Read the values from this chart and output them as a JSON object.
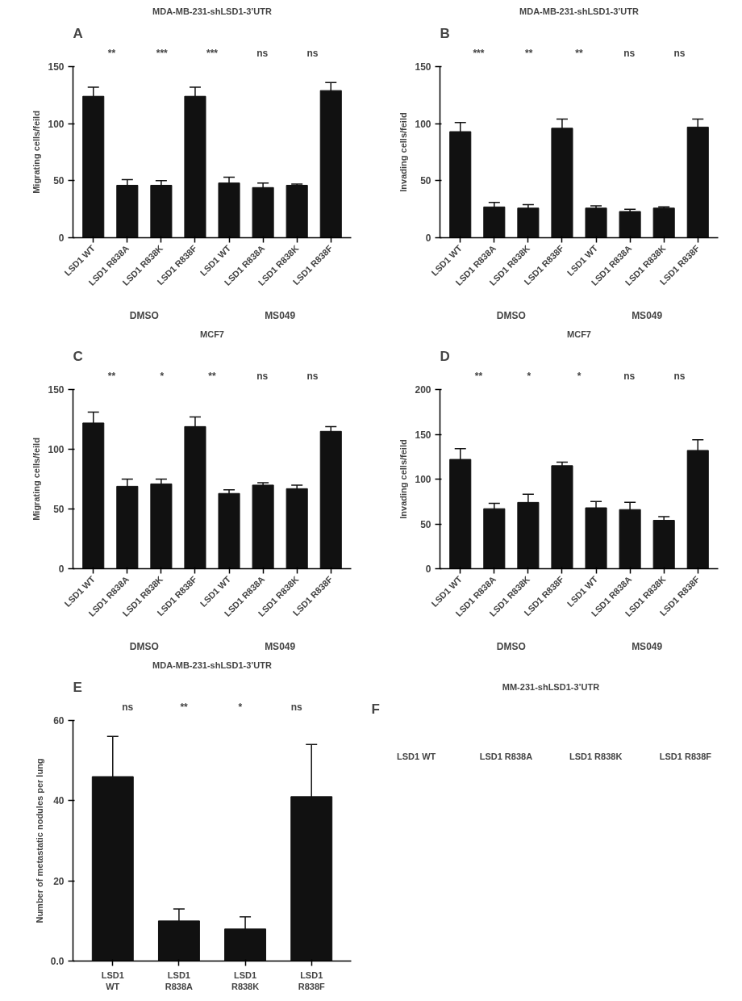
{
  "chart_data": [
    {
      "type": "bar",
      "title": "MDA-MB-231-shLSD1-3’UTR",
      "ylabel": "Migrating cells/feild",
      "categories": [
        "LSD1 WT",
        "LSD1 R838A",
        "LSD1 R838K",
        "LSD1 R838F",
        "LSD1 WT",
        "LSD1 R838A",
        "LSD1 R838K",
        "LSD1 R838F"
      ],
      "color": "#111111",
      "values": [
        124,
        46,
        46,
        124,
        48,
        44,
        46,
        129
      ],
      "errors": [
        8,
        5,
        4,
        8,
        5,
        4,
        1,
        7
      ],
      "ylim": [
        0,
        150
      ],
      "yticks": [
        0,
        50,
        100,
        150
      ],
      "grid": false,
      "annotations": [
        "A",
        "**",
        "***",
        "***",
        "ns",
        "ns",
        "DMSO",
        "MS049"
      ]
    },
    {
      "type": "bar",
      "title": "MDA-MB-231-shLSD1-3’UTR",
      "ylabel": "Invading cells/feild",
      "categories": [
        "LSD1 WT",
        "LSD1 R838A",
        "LSD1 R838K",
        "LSD1 R838F",
        "LSD1 WT",
        "LSD1 R838A",
        "LSD1 R838K",
        "LSD1 R838F"
      ],
      "color": "#111111",
      "values": [
        93,
        27,
        26,
        96,
        26,
        23,
        26,
        97
      ],
      "errors": [
        8,
        4,
        3,
        8,
        2,
        2,
        1,
        7
      ],
      "ylim": [
        0,
        150
      ],
      "yticks": [
        0,
        50,
        100,
        150
      ],
      "grid": false,
      "annotations": [
        "B",
        "***",
        "**",
        "**",
        "ns",
        "ns",
        "DMSO",
        "MS049"
      ]
    },
    {
      "type": "bar",
      "title": "MCF7",
      "ylabel": "Migrating cells/feild",
      "categories": [
        "LSD1 WT",
        "LSD1 R838A",
        "LSD1 R838K",
        "LSD1 R838F",
        "LSD1 WT",
        "LSD1 R838A",
        "LSD1 R838K",
        "LSD1 R838F"
      ],
      "color": "#111111",
      "values": [
        122,
        69,
        71,
        119,
        63,
        70,
        67,
        115
      ],
      "errors": [
        9,
        6,
        4,
        8,
        3,
        2,
        3,
        4
      ],
      "ylim": [
        0,
        150
      ],
      "yticks": [
        0,
        50,
        100,
        150
      ],
      "grid": false,
      "annotations": [
        "C",
        "**",
        "*",
        "**",
        "ns",
        "ns",
        "DMSO",
        "MS049"
      ]
    },
    {
      "type": "bar",
      "title": "MCF7",
      "ylabel": "Invading cells/feild",
      "categories": [
        "LSD1 WT",
        "LSD1 R838A",
        "LSD1 R838K",
        "LSD1 R838F",
        "LSD1 WT",
        "LSD1 R838A",
        "LSD1 R838K",
        "LSD1 R838F"
      ],
      "color": "#111111",
      "values": [
        122,
        67,
        74,
        115,
        68,
        66,
        54,
        132
      ],
      "errors": [
        12,
        6,
        9,
        4,
        7,
        8,
        4,
        12
      ],
      "ylim": [
        0,
        200
      ],
      "yticks": [
        0,
        50,
        100,
        150,
        200
      ],
      "grid": false,
      "annotations": [
        "D",
        "**",
        "*",
        "*",
        "ns",
        "ns",
        "DMSO",
        "MS049"
      ]
    },
    {
      "type": "bar",
      "title": "MDA-MB-231-shLSD1-3’UTR",
      "ylabel": "Number of metastatic nodules per lung",
      "categories": [
        "LSD1 WT",
        "LSD1 R838A",
        "LSD1 R838K",
        "LSD1 R838F"
      ],
      "color": "#111111",
      "values": [
        46,
        10,
        8,
        41
      ],
      "errors": [
        10,
        3,
        3,
        13
      ],
      "ylim": [
        0,
        60
      ],
      "yticks": [
        {
          "value": 0,
          "label": "0.0"
        },
        20,
        40,
        60
      ],
      "grid": false,
      "annotations": [
        "E",
        "ns",
        "**",
        "*",
        "ns"
      ]
    },
    {
      "type": "other",
      "title": "MM-231-shLSD1-3’UTR",
      "annotations": [
        "F",
        "LSD1 WT",
        "LSD1 R838A",
        "LSD1 R838K",
        "LSD1 R838F"
      ]
    }
  ]
}
